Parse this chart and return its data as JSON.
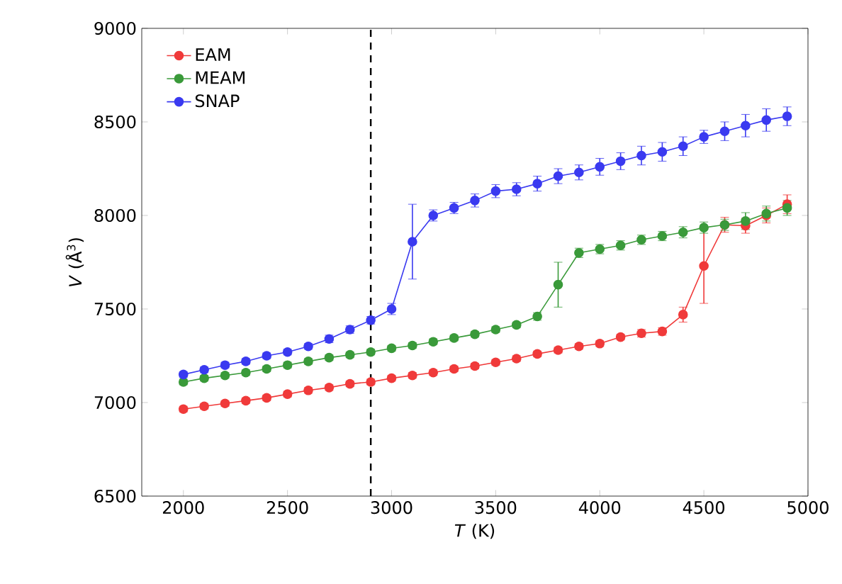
{
  "chart_data": {
    "type": "line",
    "xlabel": "*T* (K)",
    "ylabel": "*V* (Å$^{3}$)",
    "x": [
      2000,
      2100,
      2200,
      2300,
      2400,
      2500,
      2600,
      2700,
      2800,
      2900,
      3000,
      3100,
      3200,
      3300,
      3400,
      3500,
      3600,
      3700,
      3800,
      3900,
      4000,
      4100,
      4200,
      4300,
      4400,
      4500,
      4600,
      4700,
      4800,
      4900
    ],
    "series": [
      {
        "name": "EAM",
        "color": "#f03a3a",
        "values": [
          6965,
          6980,
          6995,
          7010,
          7025,
          7045,
          7065,
          7080,
          7100,
          7110,
          7130,
          7145,
          7160,
          7180,
          7195,
          7215,
          7235,
          7260,
          7280,
          7300,
          7315,
          7350,
          7370,
          7380,
          7470,
          7730,
          7950,
          7945,
          8000,
          8060
        ],
        "errors": [
          15,
          15,
          15,
          15,
          15,
          15,
          15,
          15,
          15,
          15,
          15,
          15,
          15,
          15,
          15,
          15,
          15,
          15,
          15,
          15,
          15,
          15,
          20,
          20,
          40,
          200,
          40,
          40,
          40,
          50
        ]
      },
      {
        "name": "MEAM",
        "color": "#3a9a3a",
        "values": [
          7110,
          7130,
          7145,
          7160,
          7180,
          7200,
          7220,
          7240,
          7255,
          7270,
          7290,
          7305,
          7325,
          7345,
          7365,
          7390,
          7415,
          7460,
          7630,
          7800,
          7820,
          7840,
          7870,
          7890,
          7910,
          7935,
          7950,
          7970,
          8010,
          8040
        ],
        "errors": [
          15,
          15,
          15,
          15,
          15,
          15,
          15,
          15,
          15,
          15,
          15,
          15,
          15,
          15,
          15,
          15,
          15,
          20,
          120,
          25,
          25,
          25,
          25,
          25,
          30,
          30,
          30,
          45,
          40,
          40
        ]
      },
      {
        "name": "SNAP",
        "color": "#3a3af0",
        "values": [
          7150,
          7175,
          7200,
          7220,
          7250,
          7270,
          7300,
          7340,
          7390,
          7440,
          7500,
          7860,
          8000,
          8040,
          8080,
          8130,
          8140,
          8170,
          8210,
          8230,
          8260,
          8290,
          8320,
          8340,
          8370,
          8420,
          8450,
          8480,
          8510,
          8530
        ],
        "errors": [
          15,
          15,
          15,
          15,
          15,
          15,
          15,
          20,
          20,
          20,
          30,
          200,
          30,
          30,
          35,
          35,
          35,
          40,
          40,
          40,
          45,
          45,
          50,
          50,
          50,
          35,
          50,
          60,
          60,
          50
        ]
      }
    ],
    "xlim": [
      1800,
      5000
    ],
    "ylim": [
      6500,
      9000
    ],
    "xticks": [
      2000,
      2500,
      3000,
      3500,
      4000,
      4500,
      5000
    ],
    "yticks": [
      6500,
      7000,
      7500,
      8000,
      8500,
      9000
    ],
    "ref_lines": [
      {
        "axis": "x",
        "value": 2900,
        "color": "#000000",
        "line_style": "dashed"
      }
    ],
    "legend": "top left",
    "marker": "circle",
    "line_style": "solid",
    "grid": false
  }
}
